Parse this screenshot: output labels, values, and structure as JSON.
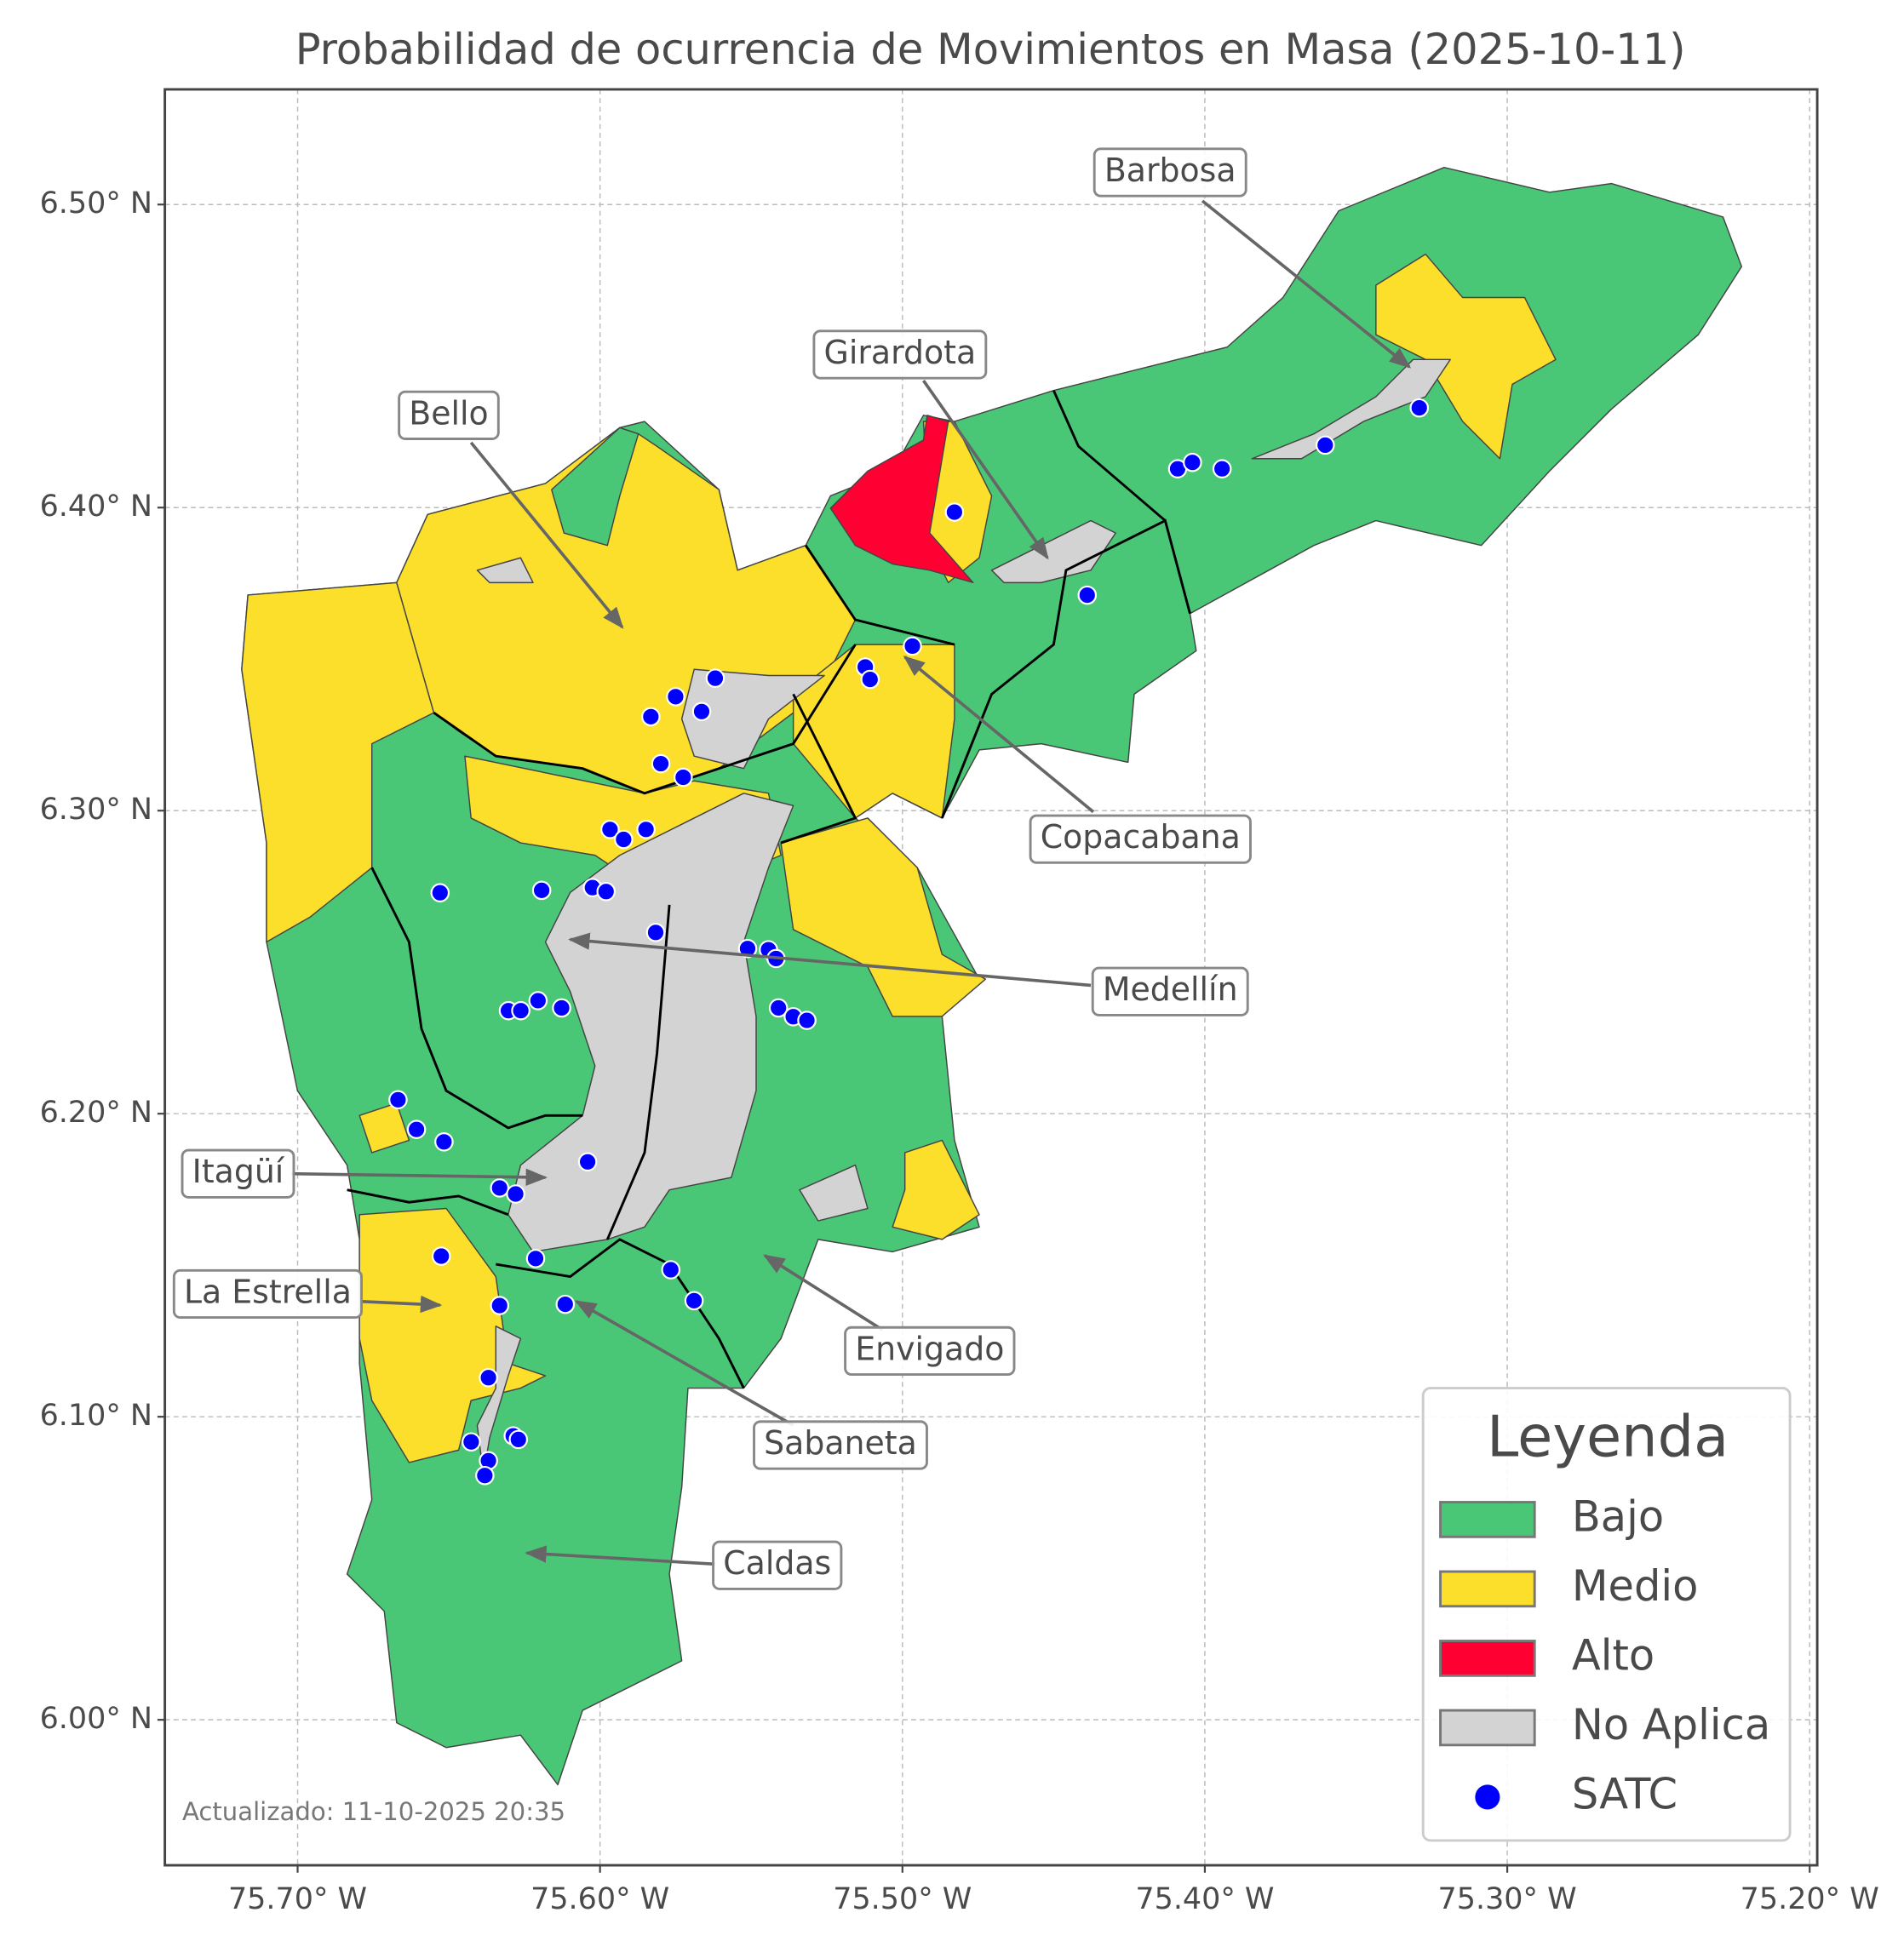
{
  "chart_data": {
    "type": "map",
    "title": "Probabilidad de ocurrencia de Movimientos en Masa (2025-10-11)",
    "footnote": "Actualizado: 11-10-2025 20:35",
    "xlim": [
      -75.7439,
      -75.1975
    ],
    "ylim": [
      5.952,
      6.538
    ],
    "xticks": [
      {
        "value": -75.7,
        "label": "75.70° W"
      },
      {
        "value": -75.6,
        "label": "75.60° W"
      },
      {
        "value": -75.5,
        "label": "75.50° W"
      },
      {
        "value": -75.4,
        "label": "75.40° W"
      },
      {
        "value": -75.3,
        "label": "75.30° W"
      },
      {
        "value": -75.2,
        "label": "75.20° W"
      }
    ],
    "yticks": [
      {
        "value": 6.0,
        "label": "6.00° N"
      },
      {
        "value": 6.1,
        "label": "6.10° N"
      },
      {
        "value": 6.2,
        "label": "6.20° N"
      },
      {
        "value": 6.3,
        "label": "6.30° N"
      },
      {
        "value": 6.4,
        "label": "6.40° N"
      },
      {
        "value": 6.5,
        "label": "6.50° N"
      }
    ],
    "grid": true,
    "legend": {
      "title": "Leyenda",
      "position": "lower right"
    },
    "classes": [
      {
        "name": "Bajo",
        "color": "#4ac776"
      },
      {
        "name": "Medio",
        "color": "#fbdf2a"
      },
      {
        "name": "Alto",
        "color": "#ff0033"
      },
      {
        "name": "No Aplica",
        "color": "#d3d3d3"
      }
    ],
    "series": [
      {
        "name": "SATC",
        "color": "#0000ff",
        "x": [
          -75.6529,
          -75.6193,
          -75.6025,
          -75.598,
          -75.5967,
          -75.5922,
          -75.5848,
          -75.5816,
          -75.575,
          -75.5832,
          -75.5664,
          -75.5619,
          -75.5799,
          -75.5725,
          -75.5512,
          -75.5443,
          -75.5418,
          -75.541,
          -75.5361,
          -75.5316,
          -75.6303,
          -75.6262,
          -75.6205,
          -75.6127,
          -75.6668,
          -75.6607,
          -75.6516,
          -75.6041,
          -75.6332,
          -75.6279,
          -75.6525,
          -75.6213,
          -75.5766,
          -75.5689,
          -75.6332,
          -75.6115,
          -75.6369,
          -75.6426,
          -75.6287,
          -75.627,
          -75.6369,
          -75.6381,
          -75.5123,
          -75.5107,
          -75.4967,
          -75.4828,
          -75.4389,
          -75.409,
          -75.4041,
          -75.3943,
          -75.3602,
          -75.3291
        ],
        "values": [
          6.2729,
          6.2737,
          6.2746,
          6.2733,
          6.2938,
          6.2905,
          6.2938,
          6.2598,
          6.3376,
          6.331,
          6.3327,
          6.3437,
          6.3155,
          6.311,
          6.2545,
          6.2541,
          6.2512,
          6.2349,
          6.232,
          6.2308,
          6.234,
          6.234,
          6.2373,
          6.2349,
          6.2046,
          6.1948,
          6.1907,
          6.1841,
          6.1755,
          6.1735,
          6.153,
          6.1522,
          6.1485,
          6.1383,
          6.1367,
          6.1371,
          6.1129,
          6.0917,
          6.0937,
          6.0925,
          6.0855,
          6.0806,
          6.3474,
          6.3433,
          6.3543,
          6.3985,
          6.3711,
          6.4128,
          6.4149,
          6.4128,
          6.4206,
          6.4329
        ]
      }
    ],
    "annotations": [
      "Barbosa",
      "Girardota",
      "Bello",
      "Copacabana",
      "Medellín",
      "Itagüí",
      "La Estrella",
      "Envigado",
      "Sabaneta",
      "Caldas"
    ]
  }
}
